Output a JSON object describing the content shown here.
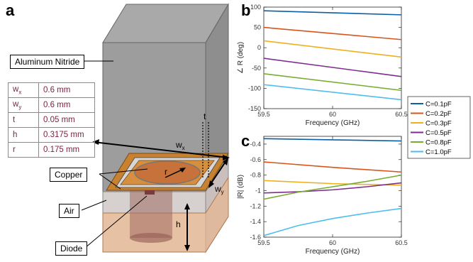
{
  "panels": {
    "a": "a",
    "b": "b",
    "c": "c"
  },
  "labels": {
    "substrate": "Aluminum Nitride",
    "copper": "Copper",
    "air": "Air",
    "diode": "Diode"
  },
  "params": [
    {
      "sym": "w",
      "sub": "x",
      "val": "0.6 mm"
    },
    {
      "sym": "w",
      "sub": "y",
      "val": "0.6 mm"
    },
    {
      "sym": "t",
      "sub": "",
      "val": "0.05 mm"
    },
    {
      "sym": "h",
      "sub": "",
      "val": "0.3175 mm"
    },
    {
      "sym": "r",
      "sub": "",
      "val": "0.175 mm"
    }
  ],
  "dims": {
    "wx": "w",
    "wx_sub": "x",
    "wy": "w",
    "wy_sub": "y",
    "t": "t",
    "r": "r",
    "h": "h"
  },
  "colors": {
    "C=0.1pF": "#0b5fa5",
    "C=0.2pF": "#d9541a",
    "C=0.3pF": "#edb120",
    "C=0.5pF": "#7e2f8e",
    "C=0.8pF": "#77ac30",
    "C=1.0pF": "#4dbeee"
  },
  "chart_data": [
    {
      "type": "line",
      "xlabel": "Frequency (GHz)",
      "ylabel": "∠ R (deg)",
      "xlim": [
        59.5,
        60.5
      ],
      "ylim": [
        -150,
        100
      ],
      "xticks": [
        59.5,
        60,
        60.5
      ],
      "yticks": [
        -150,
        -100,
        -50,
        0,
        50,
        100
      ],
      "grid": false,
      "series": [
        {
          "name": "C=0.1pF",
          "x": [
            59.5,
            60.5
          ],
          "values": [
            91,
            81
          ]
        },
        {
          "name": "C=0.2pF",
          "x": [
            59.5,
            60.5
          ],
          "values": [
            50,
            20
          ]
        },
        {
          "name": "C=0.3pF",
          "x": [
            59.5,
            60.5
          ],
          "values": [
            17,
            -23
          ]
        },
        {
          "name": "C=0.5pF",
          "x": [
            59.5,
            60.5
          ],
          "values": [
            -26,
            -71
          ]
        },
        {
          "name": "C=0.8pF",
          "x": [
            59.5,
            60.5
          ],
          "values": [
            -64,
            -105
          ]
        },
        {
          "name": "C=1.0pF",
          "x": [
            59.5,
            60.5
          ],
          "values": [
            -91,
            -128
          ]
        }
      ]
    },
    {
      "type": "line",
      "xlabel": "Frequency (GHz)",
      "ylabel": "|R| (dB)",
      "xlim": [
        59.5,
        60.5
      ],
      "ylim": [
        -1.6,
        -0.3
      ],
      "xticks": [
        59.5,
        60,
        60.5
      ],
      "yticks": [
        -1.6,
        -1.4,
        -1.2,
        -1,
        -0.8,
        -0.6,
        -0.4
      ],
      "grid": false,
      "legend": "top-left",
      "series": [
        {
          "name": "C=0.1pF",
          "x": [
            59.5,
            60,
            60.5
          ],
          "values": [
            -0.33,
            -0.345,
            -0.36
          ]
        },
        {
          "name": "C=0.2pF",
          "x": [
            59.5,
            60,
            60.5
          ],
          "values": [
            -0.63,
            -0.7,
            -0.76
          ]
        },
        {
          "name": "C=0.3pF",
          "x": [
            59.5,
            60,
            60.5
          ],
          "values": [
            -0.87,
            -0.91,
            -0.93
          ]
        },
        {
          "name": "C=0.5pF",
          "x": [
            59.5,
            59.75,
            60,
            60.25,
            60.5
          ],
          "values": [
            -1.03,
            -1.015,
            -0.99,
            -0.95,
            -0.9
          ]
        },
        {
          "name": "C=0.8pF",
          "x": [
            59.5,
            59.75,
            60,
            60.25,
            60.5
          ],
          "values": [
            -1.11,
            -1.02,
            -0.95,
            -0.88,
            -0.8
          ]
        },
        {
          "name": "C=1.0pF",
          "x": [
            59.5,
            59.75,
            60,
            60.25,
            60.5
          ],
          "values": [
            -1.58,
            -1.45,
            -1.36,
            -1.29,
            -1.23
          ]
        }
      ]
    }
  ]
}
